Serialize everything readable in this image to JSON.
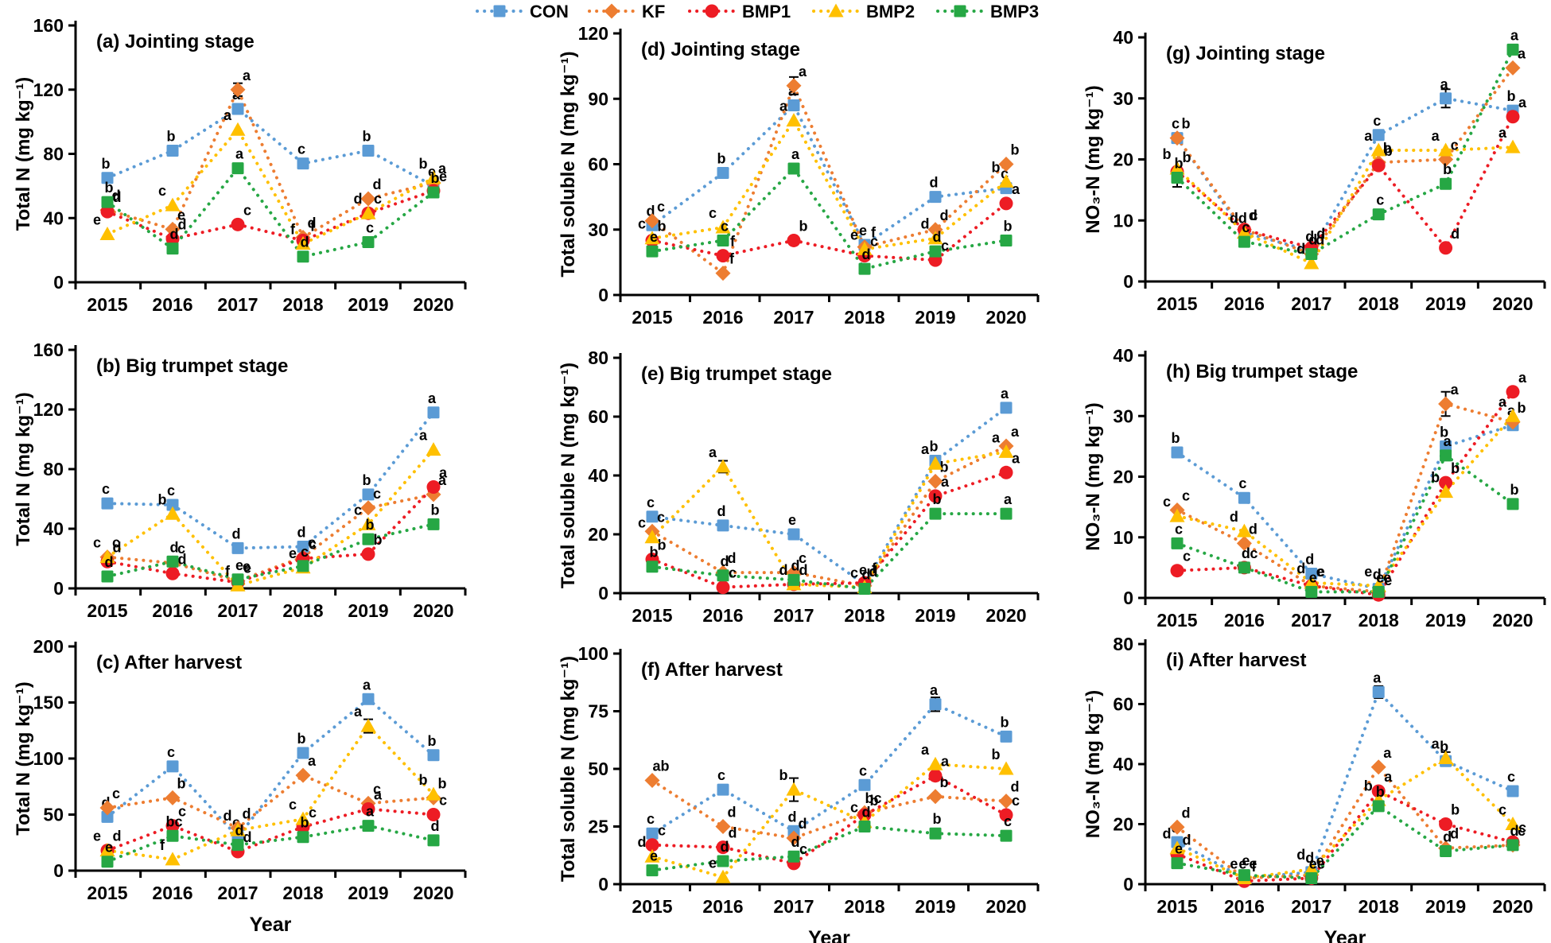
{
  "x_axis_label": "Year",
  "years": [
    "2015",
    "2016",
    "2017",
    "2018",
    "2019",
    "2020"
  ],
  "legend": {
    "items": [
      {
        "name": "CON",
        "color": "#5B9BD5",
        "marker": "square"
      },
      {
        "name": "KF",
        "color": "#ED7D31",
        "marker": "diamond"
      },
      {
        "name": "BMP1",
        "color": "#ED1C24",
        "marker": "circle"
      },
      {
        "name": "BMP2",
        "color": "#FFC000",
        "marker": "triangle"
      },
      {
        "name": "BMP3",
        "color": "#26A744",
        "marker": "square"
      }
    ]
  },
  "chart_data": [
    {
      "id": "a",
      "type": "line",
      "title": "(a) Jointing stage",
      "ylabel": "Total N (mg kg⁻¹)",
      "ylim": [
        0,
        160
      ],
      "yticks": [
        0,
        40,
        80,
        120,
        160
      ],
      "series": [
        {
          "name": "CON",
          "values": [
            65,
            82,
            108,
            74,
            82,
            60
          ],
          "labels": [
            "b",
            "b",
            "a",
            "c",
            "b",
            "e"
          ]
        },
        {
          "name": "KF",
          "values": [
            45,
            33,
            120,
            28,
            52,
            62
          ],
          "labels": [
            "d",
            "e",
            "a",
            "d",
            "d",
            "a"
          ]
        },
        {
          "name": "BMP1",
          "values": [
            44,
            27,
            36,
            26,
            43,
            57
          ],
          "labels": [
            "d",
            "d",
            "c",
            "f",
            "c",
            "e"
          ]
        },
        {
          "name": "BMP2",
          "values": [
            30,
            48,
            95,
            24,
            43,
            65
          ],
          "labels": [
            "e",
            "c",
            "a",
            "f",
            "d",
            "b"
          ]
        },
        {
          "name": "BMP3",
          "values": [
            50,
            21,
            71,
            16,
            25,
            56
          ],
          "labels": [
            "b",
            "d",
            "a",
            "d",
            "c",
            "b"
          ]
        }
      ],
      "errs": [
        [
          1,
          2,
          4
        ]
      ]
    },
    {
      "id": "d",
      "type": "line",
      "title": "(d) Jointing stage",
      "ylabel": "Total soluble N (mg kg⁻¹)",
      "ylim": [
        0,
        120
      ],
      "yticks": [
        0,
        30,
        60,
        90,
        120
      ],
      "series": [
        {
          "name": "CON",
          "values": [
            32,
            56,
            87,
            23,
            45,
            49
          ],
          "labels": [
            "d",
            "b",
            "a",
            "e",
            "d",
            "c"
          ]
        },
        {
          "name": "KF",
          "values": [
            34,
            10,
            96,
            22,
            30,
            60
          ],
          "labels": [
            "c",
            "f",
            "a",
            "f",
            "d",
            "b"
          ]
        },
        {
          "name": "BMP1",
          "values": [
            25,
            18,
            25,
            18,
            16,
            42
          ],
          "labels": [
            "b",
            "f",
            "b",
            "c",
            "c",
            "a"
          ]
        },
        {
          "name": "BMP2",
          "values": [
            26,
            31,
            80,
            21,
            26,
            52
          ],
          "labels": [
            "c",
            "c",
            "a",
            "e",
            "d",
            "b"
          ]
        },
        {
          "name": "BMP3",
          "values": [
            20,
            25,
            58,
            12,
            20,
            25
          ],
          "labels": [
            "e",
            "c",
            "a",
            "d",
            "d",
            "b"
          ]
        }
      ],
      "errs": [
        [
          1,
          2,
          4
        ]
      ]
    },
    {
      "id": "g",
      "type": "line",
      "title": "(g) Jointing stage",
      "ylabel": "NO₃-N (mg kg⁻¹)",
      "ylim": [
        0,
        40
      ],
      "yticks": [
        0,
        10,
        20,
        30,
        40
      ],
      "series": [
        {
          "name": "CON",
          "values": [
            23.5,
            8,
            5,
            24,
            30,
            28
          ],
          "labels": [
            "c",
            "d",
            "d",
            "c",
            "a",
            "b"
          ]
        },
        {
          "name": "KF",
          "values": [
            23.5,
            8.5,
            4.5,
            19.5,
            20,
            35
          ],
          "labels": [
            "b",
            "d",
            "d",
            "b",
            "c",
            "a"
          ]
        },
        {
          "name": "BMP1",
          "values": [
            18,
            8.5,
            5.5,
            19,
            5.5,
            27
          ],
          "labels": [
            "b",
            "c",
            "d",
            "b",
            "d",
            "a"
          ]
        },
        {
          "name": "BMP2",
          "values": [
            18.5,
            8,
            3,
            21.5,
            21.5,
            22
          ],
          "labels": [
            "b",
            "d",
            "d",
            "a",
            "a",
            "a"
          ]
        },
        {
          "name": "BMP3",
          "values": [
            17,
            6.5,
            4.5,
            11,
            16,
            38
          ],
          "labels": [
            "b",
            "c",
            "d",
            "c",
            "b",
            "a"
          ]
        }
      ],
      "errs": [
        [
          0,
          4,
          1.5
        ],
        [
          4,
          0,
          1.5
        ]
      ]
    },
    {
      "id": "b",
      "type": "line",
      "title": "(b) Big trumpet stage",
      "ylabel": "Total N (mg kg⁻¹)",
      "ylim": [
        0,
        160
      ],
      "yticks": [
        0,
        40,
        80,
        120,
        160
      ],
      "series": [
        {
          "name": "CON",
          "values": [
            57,
            56,
            27,
            28,
            63,
            118
          ],
          "labels": [
            "c",
            "c",
            "d",
            "d",
            "b",
            "a"
          ]
        },
        {
          "name": "KF",
          "values": [
            21,
            17,
            5,
            21,
            54,
            63
          ],
          "labels": [
            "c",
            "c",
            "e",
            "c",
            "c",
            "a"
          ]
        },
        {
          "name": "BMP1",
          "values": [
            18,
            10,
            4,
            20,
            23,
            68
          ],
          "labels": [
            "d",
            "d",
            "e",
            "c",
            "b",
            "a"
          ]
        },
        {
          "name": "BMP2",
          "values": [
            21,
            50,
            2,
            14,
            43,
            93
          ],
          "labels": [
            "c",
            "b",
            "f",
            "e",
            "c",
            "a"
          ]
        },
        {
          "name": "BMP3",
          "values": [
            8,
            18,
            6,
            15,
            33,
            43
          ],
          "labels": [
            "d",
            "d",
            "e",
            "c",
            "b",
            "b"
          ]
        }
      ],
      "errs": []
    },
    {
      "id": "e",
      "type": "line",
      "title": "(e) Big trumpet stage",
      "ylabel": "Total soluble N (mg kg⁻¹)",
      "ylim": [
        0,
        80
      ],
      "yticks": [
        0,
        20,
        40,
        60,
        80
      ],
      "series": [
        {
          "name": "CON",
          "values": [
            26,
            23,
            20,
            3,
            45,
            63
          ],
          "labels": [
            "c",
            "d",
            "e",
            "e",
            "b",
            "a"
          ]
        },
        {
          "name": "KF",
          "values": [
            21,
            7,
            7,
            2.5,
            38,
            50
          ],
          "labels": [
            "c",
            "d",
            "c",
            "d",
            "b",
            "a"
          ]
        },
        {
          "name": "BMP1",
          "values": [
            11.5,
            2,
            3,
            3.5,
            33,
            41
          ],
          "labels": [
            "b",
            "c",
            "d",
            "f",
            "a",
            "a"
          ]
        },
        {
          "name": "BMP2",
          "values": [
            19,
            43,
            3,
            2,
            44,
            48
          ],
          "labels": [
            "c",
            "a",
            "d",
            "c",
            "a",
            "a"
          ]
        },
        {
          "name": "BMP3",
          "values": [
            9,
            6,
            4.5,
            1.5,
            27,
            27
          ],
          "labels": [
            "b",
            "d",
            "d",
            "d",
            "b",
            "a"
          ]
        }
      ],
      "errs": [
        [
          3,
          1,
          2
        ]
      ]
    },
    {
      "id": "h",
      "type": "line",
      "title": "(h) Big trumpet stage",
      "ylabel": "NO₃-N (mg kg⁻¹)",
      "ylim": [
        0,
        40
      ],
      "yticks": [
        0,
        10,
        20,
        30,
        40
      ],
      "series": [
        {
          "name": "CON",
          "values": [
            24,
            16.5,
            4,
            1.5,
            25,
            28.5
          ],
          "labels": [
            "b",
            "c",
            "d",
            "d",
            "b",
            "a"
          ]
        },
        {
          "name": "KF",
          "values": [
            14.5,
            9,
            2,
            1,
            32,
            29
          ],
          "labels": [
            "c",
            "d",
            "e",
            "e",
            "a",
            "b"
          ]
        },
        {
          "name": "BMP1",
          "values": [
            4.5,
            5,
            2,
            0.5,
            19,
            34
          ],
          "labels": [
            "c",
            "c",
            "e",
            "e",
            "b",
            "a"
          ]
        },
        {
          "name": "BMP2",
          "values": [
            13.5,
            11,
            2.5,
            2,
            17.5,
            30
          ],
          "labels": [
            "c",
            "d",
            "d",
            "e",
            "b",
            "a"
          ]
        },
        {
          "name": "BMP3",
          "values": [
            9,
            5,
            1,
            1,
            23.5,
            15.5
          ],
          "labels": [
            "c",
            "d",
            "e",
            "e",
            "a",
            "b"
          ]
        }
      ],
      "errs": [
        [
          1,
          4,
          2
        ]
      ]
    },
    {
      "id": "c",
      "type": "line",
      "title": "(c) After harvest",
      "ylabel": "Total N (mg kg⁻¹)",
      "ylim": [
        0,
        200
      ],
      "yticks": [
        0,
        50,
        100,
        150,
        200
      ],
      "series": [
        {
          "name": "CON",
          "values": [
            48,
            93,
            30,
            105,
            153,
            103
          ],
          "labels": [
            "d",
            "c",
            "e",
            "b",
            "a",
            "b"
          ]
        },
        {
          "name": "KF",
          "values": [
            56,
            65,
            38,
            85,
            60,
            65
          ],
          "labels": [
            "c",
            "b",
            "d",
            "a",
            "c",
            "b"
          ]
        },
        {
          "name": "BMP1",
          "values": [
            18,
            40,
            17,
            39,
            55,
            50
          ],
          "labels": [
            "d",
            "c",
            "d",
            "c",
            "a",
            "c"
          ]
        },
        {
          "name": "BMP2",
          "values": [
            18,
            10,
            36,
            46,
            129,
            68
          ],
          "labels": [
            "e",
            "f",
            "d",
            "c",
            "a",
            "b"
          ]
        },
        {
          "name": "BMP3",
          "values": [
            8,
            31,
            23,
            30,
            40,
            27
          ],
          "labels": [
            "e",
            "bc",
            "d",
            "b",
            "a",
            "d"
          ]
        }
      ],
      "errs": [
        [
          3,
          4,
          6
        ]
      ]
    },
    {
      "id": "f",
      "type": "line",
      "title": "(f) After harvest",
      "ylabel": "Total soluble N (mg kg⁻¹)",
      "ylim": [
        0,
        100
      ],
      "yticks": [
        0,
        25,
        50,
        75,
        100
      ],
      "series": [
        {
          "name": "CON",
          "values": [
            22,
            41,
            23,
            43,
            78,
            64
          ],
          "labels": [
            "c",
            "c",
            "d",
            "c",
            "a",
            "b"
          ]
        },
        {
          "name": "KF",
          "values": [
            45,
            25,
            20,
            31,
            38,
            36
          ],
          "labels": [
            "ab",
            "d",
            "d",
            "bc",
            "b",
            "d"
          ]
        },
        {
          "name": "BMP1",
          "values": [
            17,
            16,
            9,
            30,
            47,
            30
          ],
          "labels": [
            "c",
            "d",
            "c",
            "b",
            "a",
            "c"
          ]
        },
        {
          "name": "BMP2",
          "values": [
            12,
            3,
            41,
            27,
            52,
            50
          ],
          "labels": [
            "d",
            "e",
            "b",
            "c",
            "a",
            "b"
          ]
        },
        {
          "name": "BMP3",
          "values": [
            6,
            10,
            12,
            25,
            22,
            21
          ],
          "labels": [
            "e",
            "d",
            "d",
            "d",
            "b",
            "c"
          ]
        }
      ],
      "errs": [
        [
          3,
          2,
          5
        ],
        [
          0,
          4,
          3
        ]
      ]
    },
    {
      "id": "i",
      "type": "line",
      "title": "(i) After harvest",
      "ylabel": "NO₃-N (mg kg⁻¹)",
      "ylim": [
        0,
        80
      ],
      "yticks": [
        0,
        20,
        40,
        60,
        80
      ],
      "series": [
        {
          "name": "CON",
          "values": [
            14,
            2,
            4,
            64,
            41,
            31
          ],
          "labels": [
            "d",
            "e",
            "d",
            "a",
            "b",
            "c"
          ]
        },
        {
          "name": "KF",
          "values": [
            19,
            2,
            3,
            39,
            12,
            13
          ],
          "labels": [
            "d",
            "e",
            "e",
            "a",
            "d",
            "c"
          ]
        },
        {
          "name": "BMP1",
          "values": [
            10,
            1,
            2,
            31,
            20,
            14
          ],
          "labels": [
            "d",
            "f",
            "e",
            "a",
            "b",
            "c"
          ]
        },
        {
          "name": "BMP2",
          "values": [
            12,
            2,
            5,
            28,
            42,
            20
          ],
          "labels": [
            "d",
            "e",
            "d",
            "b",
            "a",
            "c"
          ]
        },
        {
          "name": "BMP3",
          "values": [
            7,
            3,
            2,
            26,
            11,
            13
          ],
          "labels": [
            "e",
            "e",
            "e",
            "b",
            "d",
            "d"
          ]
        }
      ],
      "errs": [
        [
          0,
          3,
          2
        ],
        [
          3,
          4,
          2
        ]
      ]
    }
  ]
}
